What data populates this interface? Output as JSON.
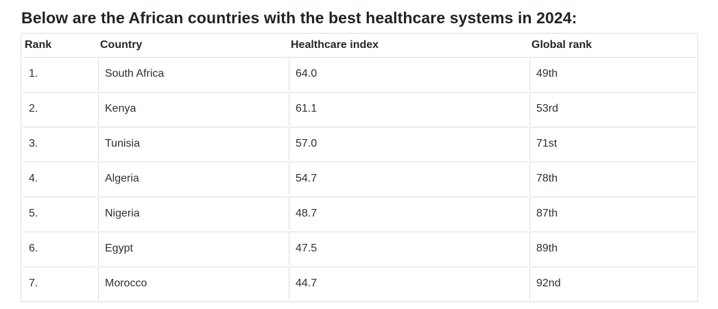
{
  "page": {
    "title": "Below are the African countries with the best healthcare systems in 2024:"
  },
  "table": {
    "columns": [
      "Rank",
      "Country",
      "Healthcare index",
      "Global rank"
    ],
    "rows": [
      {
        "rank": "1.",
        "country": "South Africa",
        "healthcare_index": "64.0",
        "global_rank": "49th"
      },
      {
        "rank": "2.",
        "country": "Kenya",
        "healthcare_index": "61.1",
        "global_rank": "53rd"
      },
      {
        "rank": "3.",
        "country": "Tunisia",
        "healthcare_index": "57.0",
        "global_rank": "71st"
      },
      {
        "rank": "4.",
        "country": "Algeria",
        "healthcare_index": "54.7",
        "global_rank": "78th"
      },
      {
        "rank": "5.",
        "country": "Nigeria",
        "healthcare_index": "48.7",
        "global_rank": "87th"
      },
      {
        "rank": "6.",
        "country": "Egypt",
        "healthcare_index": "47.5",
        "global_rank": "89th"
      },
      {
        "rank": "7.",
        "country": "Morocco",
        "healthcare_index": "44.7",
        "global_rank": "92nd"
      }
    ]
  },
  "colors": {
    "title_text": "#1d2327",
    "body_text": "#2b2f33",
    "table_border": "#dddddd",
    "background": "#ffffff"
  }
}
